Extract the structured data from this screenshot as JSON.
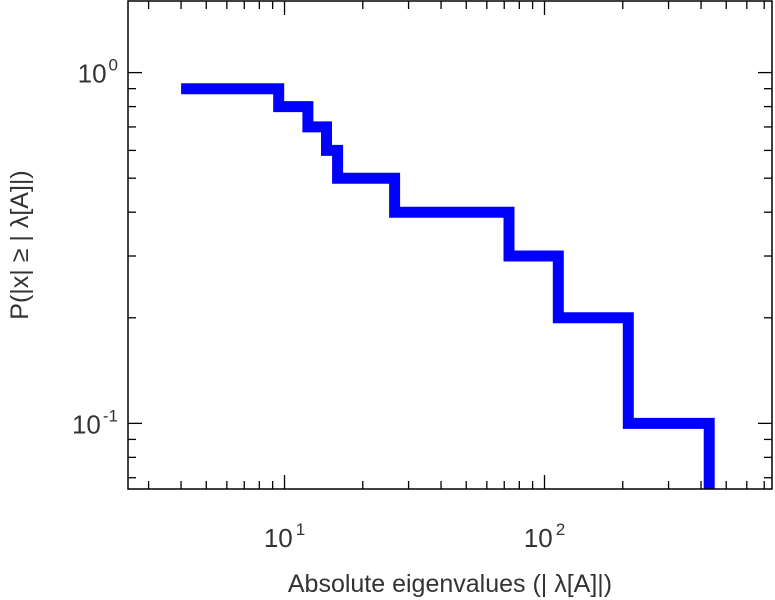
{
  "chart_data": {
    "type": "line",
    "style": "step",
    "xscale": "log",
    "yscale": "log",
    "xlim": [
      2.5,
      750
    ],
    "ylim": [
      0.065,
      1.6
    ],
    "xlabel": "Absolute eigenvalues (|     λ[A]|)",
    "ylabel": "P(|x|  ≥ | λ[A]|)",
    "grid": false,
    "series": [
      {
        "color": "#0000ff",
        "x": [
          4,
          9.5,
          9.5,
          12.3,
          12.3,
          14.5,
          14.5,
          16,
          16,
          26.5,
          26.5,
          73,
          73,
          113,
          113,
          210,
          210,
          430,
          430
        ],
        "y": [
          0.9,
          0.9,
          0.8,
          0.8,
          0.7,
          0.7,
          0.6,
          0.6,
          0.5,
          0.5,
          0.4,
          0.4,
          0.3,
          0.3,
          0.2,
          0.2,
          0.1,
          0.1,
          0.065
        ]
      }
    ],
    "xticks": [
      {
        "base": "10",
        "exp": "1",
        "value": 10
      },
      {
        "base": "10",
        "exp": "2",
        "value": 100
      }
    ],
    "yticks": [
      {
        "base": "10",
        "exp": "0",
        "value": 1
      },
      {
        "base": "10",
        "exp": "-1",
        "value": 0.1
      }
    ]
  }
}
